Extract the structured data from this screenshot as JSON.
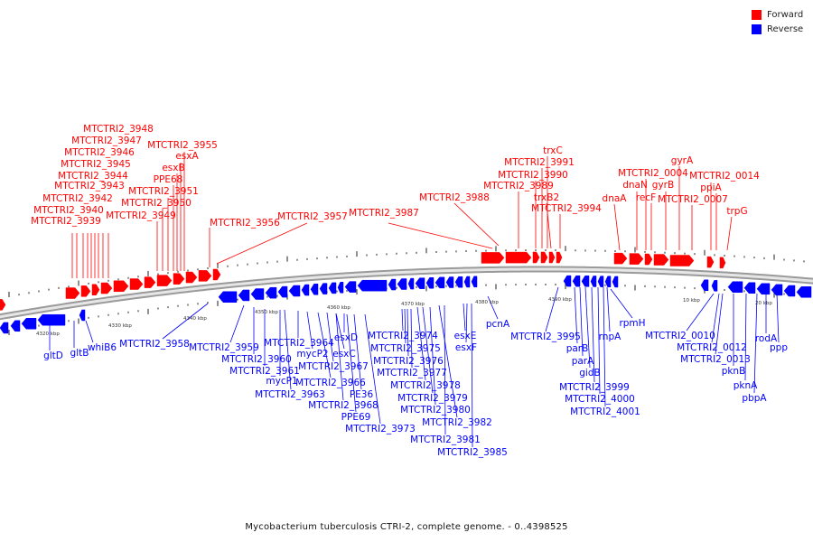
{
  "legend": {
    "forward": {
      "label": "Forward",
      "color": "#ff0000"
    },
    "reverse": {
      "label": "Reverse",
      "color": "#0000ff"
    }
  },
  "caption": "Mycobacterium tuberculosis CTRI-2, complete genome. - 0..4398525",
  "scale_labels": [
    "4320 kbp",
    "4330 kbp",
    "4340 kbp",
    "4350 kbp",
    "4360 kbp",
    "4370 kbp",
    "4380 kbp",
    "4390 kbp",
    "10 kbp",
    "20 kbp"
  ],
  "forward_labels": [
    "MTCTRI2_3948",
    "MTCTRI2_3947",
    "MTCTRI2_3946",
    "MTCTRI2_3945",
    "MTCTRI2_3944",
    "MTCTRI2_3943",
    "MTCTRI2_3942",
    "MTCTRI2_3940",
    "MTCTRI2_3939",
    "MTCTRI2_3955",
    "esxA",
    "esxB",
    "PPE68",
    "MTCTRI2_3951",
    "MTCTRI2_3950",
    "MTCTRI2_3949",
    "MTCTRI2_3956",
    "MTCTRI2_3957",
    "MTCTRI2_3987",
    "MTCTRI2_3988",
    "trxC",
    "MTCTRI2_3991",
    "MTCTRI2_3990",
    "MTCTRI2_3989",
    "trxB2",
    "MTCTRI2_3994",
    "dnaA",
    "gyrA",
    "MTCTRI2_0004",
    "dnaN",
    "recF",
    "gyrB",
    "MTCTRI2_0007",
    "MTCTRI2_0014",
    "ppiA",
    "trpG"
  ],
  "reverse_labels": [
    "gltD",
    "gltB",
    "whiB6",
    "MTCTRI2_3958",
    "MTCTRI2_3959",
    "MTCTRI2_3960",
    "MTCTRI2_3961",
    "mycP1",
    "MTCTRI2_3963",
    "MTCTRI2_3964",
    "mycP2",
    "esxD",
    "esxC",
    "MTCTRI2_3967",
    "MTCTRI2_3966",
    "PE36",
    "MTCTRI2_3968",
    "PPE69",
    "MTCTRI2_3973",
    "MTCTRI2_3974",
    "MTCTRI2_3975",
    "MTCTRI2_3976",
    "MTCTRI2_3977",
    "MTCTRI2_3978",
    "MTCTRI2_3979",
    "MTCTRI2_3980",
    "MTCTRI2_3982",
    "MTCTRI2_3981",
    "MTCTRI2_3985",
    "esxE",
    "esxF",
    "pcnA",
    "MTCTRI2_3995",
    "parB",
    "parA",
    "gidB",
    "MTCTRI2_3999",
    "MTCTRI2_4000",
    "MTCTRI2_4001",
    "rnpA",
    "rpmH",
    "MTCTRI2_0010",
    "MTCTRI2_0012",
    "MTCTRI2_0013",
    "pknB",
    "pknA",
    "pbpA",
    "rodA",
    "ppp"
  ]
}
